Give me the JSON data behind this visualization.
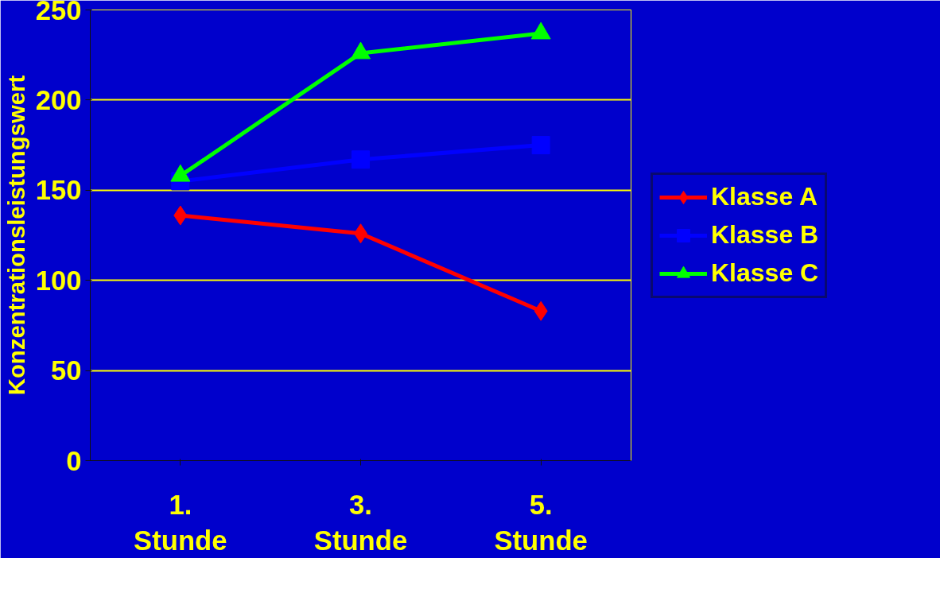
{
  "chart_data": {
    "type": "line",
    "ylabel": "Konzentrationsleistungswert",
    "categories": [
      "1.\nStunde",
      "3.\nStunde",
      "5.\nStunde"
    ],
    "series": [
      {
        "name": "Klasse A",
        "color": "#ff0000",
        "marker": "diamond",
        "values": [
          136,
          126,
          83
        ]
      },
      {
        "name": "Klasse B",
        "color": "#0000ff",
        "marker": "square",
        "values": [
          155,
          167,
          175
        ]
      },
      {
        "name": "Klasse C",
        "color": "#00ff00",
        "marker": "triangle",
        "values": [
          158,
          226,
          237
        ]
      }
    ],
    "ylim": [
      0,
      250
    ],
    "yticks": [
      0,
      50,
      100,
      150,
      200,
      250
    ],
    "grid": "y",
    "legend": "right",
    "line_style": "solid"
  }
}
